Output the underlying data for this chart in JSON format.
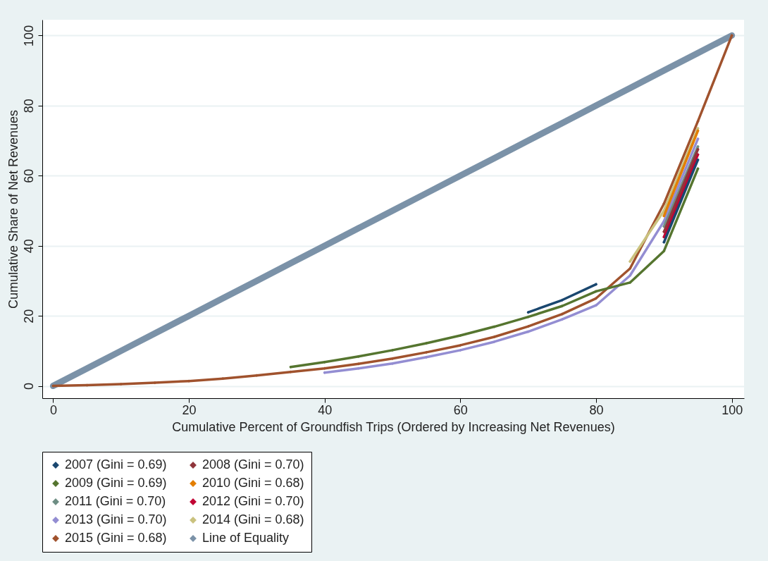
{
  "chart_data": {
    "type": "line",
    "xlabel": "Cumulative Percent of Groundfish Trips (Ordered by Increasing Net Revenues)",
    "ylabel": "Cumulative Share of Net Revenues",
    "x": [
      0,
      5,
      10,
      15,
      20,
      25,
      30,
      35,
      40,
      45,
      50,
      55,
      60,
      65,
      70,
      75,
      80,
      85,
      90,
      95,
      100
    ],
    "xlim": [
      -1.6,
      101.8
    ],
    "ylim": [
      -3.5,
      104.5
    ],
    "xticks": [
      0,
      20,
      40,
      60,
      80,
      100
    ],
    "yticks": [
      0,
      20,
      40,
      60,
      80,
      100
    ],
    "grid": "y",
    "legend": "bottom",
    "marker": "diamond",
    "line_style": "solid",
    "series": [
      {
        "name": "2007 (Gini = 0.69)",
        "color": "#1a476f",
        "values": [
          null,
          null,
          null,
          null,
          null,
          null,
          null,
          null,
          null,
          null,
          null,
          null,
          null,
          null,
          21,
          24.5,
          29,
          null,
          41,
          64.5,
          null
        ]
      },
      {
        "name": "2008 (Gini = 0.70)",
        "color": "#90353b",
        "values": [
          null,
          null,
          null,
          null,
          null,
          null,
          null,
          null,
          null,
          null,
          null,
          null,
          null,
          null,
          null,
          null,
          null,
          null,
          44,
          67.5,
          null
        ]
      },
      {
        "name": "2009 (Gini = 0.69)",
        "color": "#55752f",
        "values": [
          null,
          null,
          null,
          null,
          null,
          null,
          null,
          5.4,
          6.8,
          8.4,
          10.2,
          12.2,
          14.4,
          16.9,
          19.7,
          22.8,
          27,
          29.5,
          38.5,
          62,
          null
        ]
      },
      {
        "name": "2010 (Gini = 0.68)",
        "color": "#e37e00",
        "values": [
          null,
          null,
          null,
          null,
          null,
          null,
          null,
          null,
          null,
          null,
          null,
          null,
          null,
          null,
          null,
          null,
          null,
          null,
          48.5,
          72.8,
          null
        ]
      },
      {
        "name": "2011 (Gini = 0.70)",
        "color": "#6e8e84",
        "values": [
          null,
          null,
          null,
          null,
          null,
          null,
          null,
          null,
          null,
          null,
          null,
          null,
          null,
          null,
          null,
          null,
          null,
          null,
          45.5,
          68.3,
          null
        ]
      },
      {
        "name": "2012 (Gini = 0.70)",
        "color": "#c10534",
        "values": [
          null,
          null,
          null,
          null,
          null,
          null,
          null,
          null,
          null,
          null,
          null,
          null,
          null,
          null,
          null,
          null,
          null,
          null,
          42.5,
          66,
          null
        ]
      },
      {
        "name": "2013 (Gini = 0.70)",
        "color": "#938dd2",
        "values": [
          null,
          null,
          null,
          null,
          null,
          null,
          null,
          null,
          3.8,
          5,
          6.4,
          8.2,
          10.2,
          12.6,
          15.5,
          19,
          23,
          31.5,
          47,
          70.5,
          null
        ]
      },
      {
        "name": "2014 (Gini = 0.68)",
        "color": "#cac27e",
        "values": [
          null,
          null,
          null,
          null,
          null,
          null,
          null,
          null,
          null,
          null,
          null,
          null,
          null,
          null,
          null,
          null,
          null,
          35.5,
          50,
          73.5,
          null
        ]
      },
      {
        "name": "2015 (Gini = 0.68)",
        "color": "#a0522d",
        "values": [
          0,
          0.2,
          0.5,
          0.9,
          1.4,
          2.1,
          3,
          4,
          5,
          6.3,
          7.8,
          9.6,
          11.6,
          14,
          17,
          20.5,
          25,
          33.5,
          52,
          75.5,
          100
        ]
      },
      {
        "name": "Line of Equality",
        "color": "#7b92a8",
        "values": [
          0,
          5,
          10,
          15,
          20,
          25,
          30,
          35,
          40,
          45,
          50,
          55,
          60,
          65,
          70,
          75,
          80,
          85,
          90,
          95,
          100
        ]
      }
    ]
  }
}
